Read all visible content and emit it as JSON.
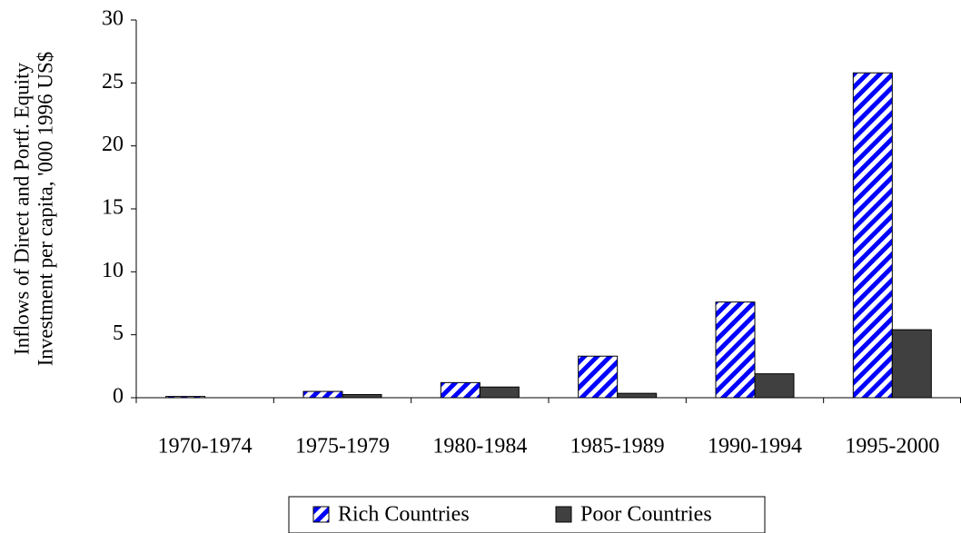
{
  "chart_data": {
    "type": "bar",
    "ylabel": [
      "Inflows of Direct and Portf. Equity",
      "Investment per capita, '000 1996 US$"
    ],
    "categories": [
      "1970-1974",
      "1975-1979",
      "1980-1984",
      "1985-1989",
      "1990-1994",
      "1995-2000"
    ],
    "series": [
      {
        "name": "Rich Countries",
        "color": "#0000ff",
        "pattern": "hatch",
        "values": [
          0.1,
          0.5,
          1.2,
          3.3,
          7.6,
          25.8
        ]
      },
      {
        "name": "Poor Countries",
        "color": "#404040",
        "values": [
          0.0,
          0.25,
          0.85,
          0.35,
          1.9,
          5.4
        ]
      }
    ],
    "ylim": [
      0,
      30
    ],
    "yticks": [
      0,
      5,
      10,
      15,
      20,
      25,
      30
    ],
    "grid": false,
    "legend": "bottom"
  }
}
